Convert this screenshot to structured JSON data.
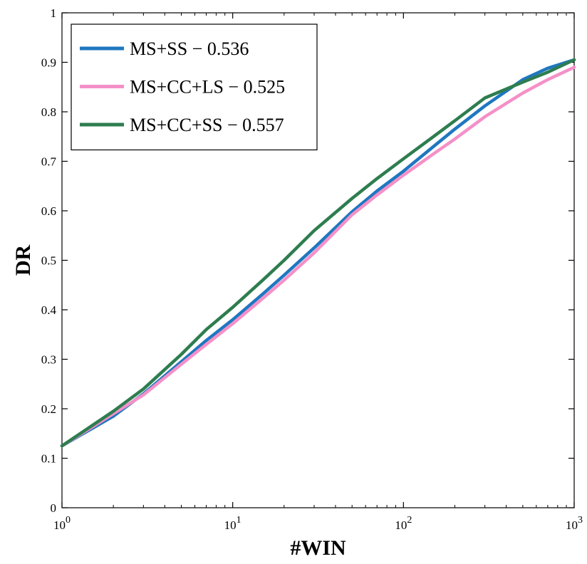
{
  "chart_data": {
    "type": "line",
    "xscale": "log",
    "xlabel": "#WIN",
    "ylabel": "DR",
    "xlim": [
      1,
      1000
    ],
    "ylim": [
      0,
      1
    ],
    "xticks": [
      {
        "value": 1,
        "base": "10",
        "exp": "0"
      },
      {
        "value": 10,
        "base": "10",
        "exp": "1"
      },
      {
        "value": 100,
        "base": "10",
        "exp": "2"
      },
      {
        "value": 1000,
        "base": "10",
        "exp": "3"
      }
    ],
    "yticks": [
      "0",
      "0.1",
      "0.2",
      "0.3",
      "0.4",
      "0.5",
      "0.6",
      "0.7",
      "0.8",
      "0.9",
      "1"
    ],
    "grid": false,
    "legend_position": "top-left",
    "series": [
      {
        "name": "MS+SS − 0.536",
        "color": "#1f77c0",
        "x": [
          1,
          2,
          3,
          5,
          7,
          10,
          15,
          20,
          30,
          50,
          70,
          100,
          150,
          200,
          300,
          500,
          700,
          1000
        ],
        "y": [
          0.125,
          0.185,
          0.23,
          0.295,
          0.338,
          0.38,
          0.432,
          0.47,
          0.525,
          0.598,
          0.64,
          0.68,
          0.73,
          0.765,
          0.812,
          0.865,
          0.888,
          0.905
        ]
      },
      {
        "name": "MS+CC+LS − 0.525",
        "color": "#f490c8",
        "x": [
          1,
          2,
          3,
          5,
          7,
          10,
          15,
          20,
          30,
          50,
          70,
          100,
          150,
          200,
          300,
          500,
          700,
          1000
        ],
        "y": [
          0.125,
          0.19,
          0.228,
          0.29,
          0.33,
          0.372,
          0.423,
          0.46,
          0.515,
          0.592,
          0.632,
          0.672,
          0.715,
          0.745,
          0.79,
          0.838,
          0.865,
          0.89
        ]
      },
      {
        "name": "MS+CC+SS − 0.557",
        "color": "#2e7d4f",
        "x": [
          1,
          2,
          3,
          5,
          7,
          10,
          15,
          20,
          30,
          50,
          70,
          100,
          150,
          200,
          300,
          500,
          700,
          1000
        ],
        "y": [
          0.125,
          0.195,
          0.24,
          0.31,
          0.36,
          0.405,
          0.46,
          0.5,
          0.56,
          0.625,
          0.665,
          0.705,
          0.75,
          0.782,
          0.828,
          0.86,
          0.88,
          0.905
        ]
      }
    ]
  }
}
